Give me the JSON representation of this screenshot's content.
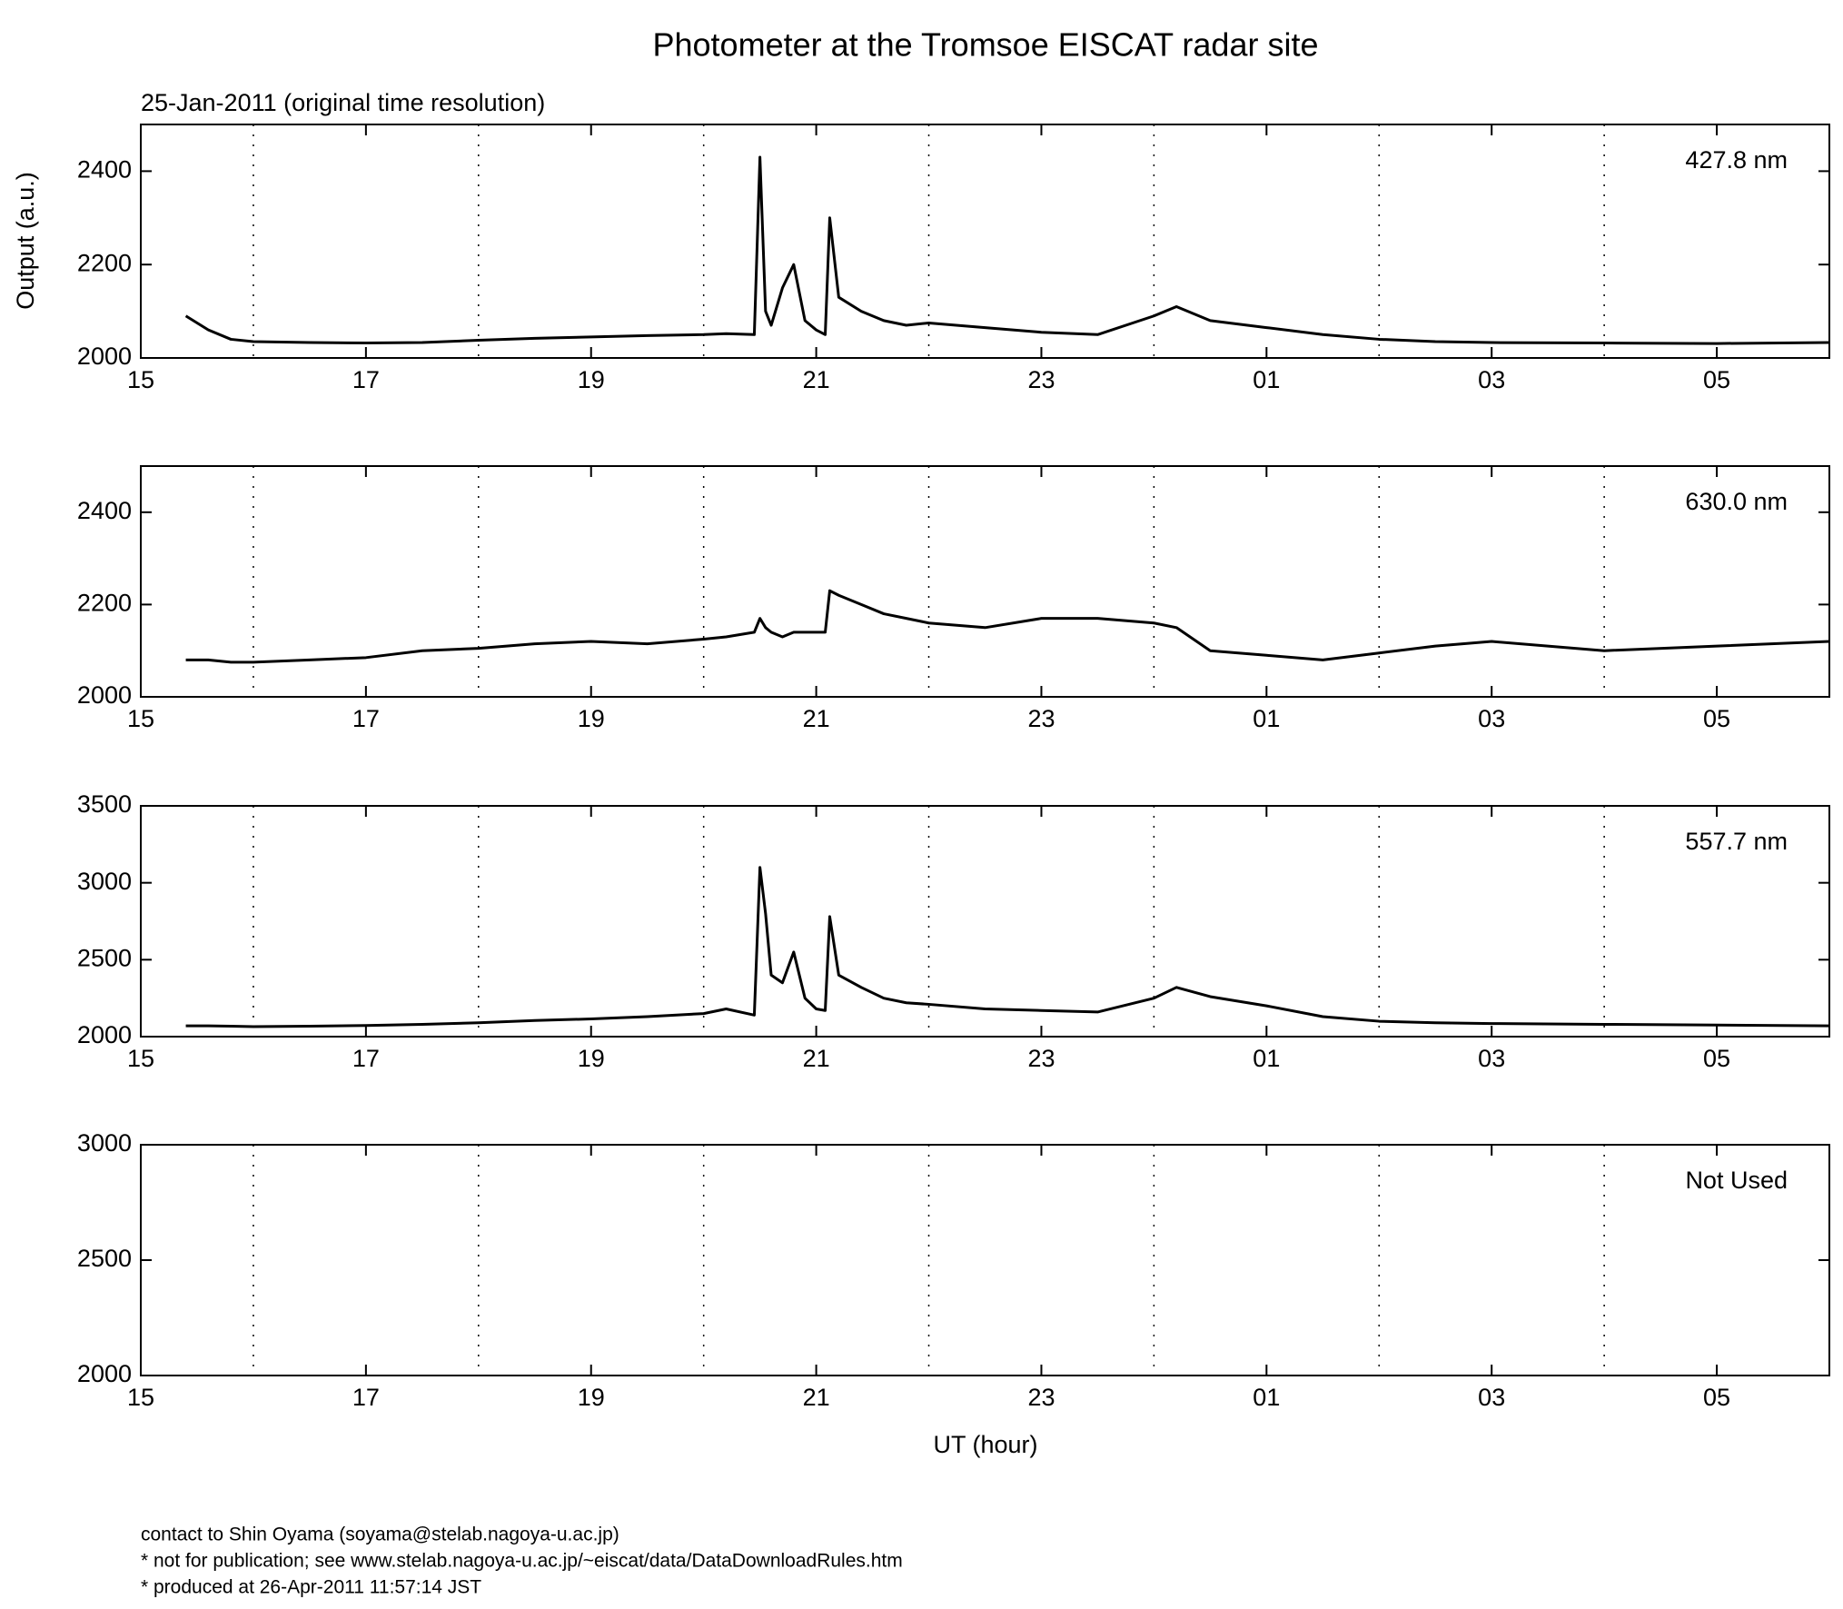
{
  "title": "Photometer at the Tromsoe EISCAT radar site",
  "subtitle": "25-Jan-2011 (original time resolution)",
  "ylabel": "Output (a.u.)",
  "xlabel": "UT (hour)",
  "footer": [
    "contact to Shin Oyama (soyama@stelab.nagoya-u.ac.jp)",
    "* not for publication; see www.stelab.nagoya-u.ac.jp/~eiscat/data/DataDownloadRules.htm",
    "* produced at 26-Apr-2011 11:57:14 JST"
  ],
  "chart_data": [
    {
      "type": "line",
      "annotation": "427.8 nm",
      "xlim": [
        15,
        30
      ],
      "xticks": [
        15,
        17,
        19,
        21,
        23,
        {
          "value": 25,
          "label": "01"
        },
        {
          "value": 27,
          "label": "03"
        },
        {
          "value": 29,
          "label": "05"
        }
      ],
      "xgrid": [
        16,
        18,
        20,
        22,
        24,
        26,
        28
      ],
      "ylim": [
        2000,
        2500
      ],
      "yticks": [
        2000,
        2200,
        2400
      ],
      "x": [
        15.4,
        15.6,
        15.8,
        16,
        16.5,
        17,
        17.5,
        18,
        18.5,
        19,
        19.5,
        20,
        20.2,
        20.45,
        20.5,
        20.55,
        20.6,
        20.7,
        20.8,
        20.9,
        21.0,
        21.08,
        21.12,
        21.2,
        21.4,
        21.6,
        21.8,
        22,
        22.5,
        23,
        23.5,
        24,
        24.2,
        24.5,
        25,
        25.5,
        26,
        26.5,
        27,
        28,
        29,
        30
      ],
      "series": [
        {
          "color": "#000000",
          "values": [
            2090,
            2060,
            2040,
            2035,
            2033,
            2032,
            2033,
            2038,
            2042,
            2045,
            2048,
            2050,
            2052,
            2050,
            2430,
            2100,
            2070,
            2150,
            2200,
            2080,
            2060,
            2050,
            2300,
            2130,
            2100,
            2080,
            2070,
            2075,
            2065,
            2055,
            2050,
            2090,
            2110,
            2080,
            2065,
            2050,
            2040,
            2035,
            2033,
            2032,
            2031,
            2033
          ]
        }
      ]
    },
    {
      "type": "line",
      "annotation": "630.0 nm",
      "xlim": [
        15,
        30
      ],
      "xticks": [
        15,
        17,
        19,
        21,
        23,
        {
          "value": 25,
          "label": "01"
        },
        {
          "value": 27,
          "label": "03"
        },
        {
          "value": 29,
          "label": "05"
        }
      ],
      "xgrid": [
        16,
        18,
        20,
        22,
        24,
        26,
        28
      ],
      "ylim": [
        2000,
        2500
      ],
      "yticks": [
        2000,
        2200,
        2400
      ],
      "x": [
        15.4,
        15.6,
        15.8,
        16,
        16.5,
        17,
        17.5,
        18,
        18.5,
        19,
        19.5,
        20,
        20.2,
        20.45,
        20.5,
        20.55,
        20.6,
        20.7,
        20.8,
        20.9,
        21.0,
        21.08,
        21.12,
        21.2,
        21.4,
        21.6,
        21.8,
        22,
        22.5,
        23,
        23.5,
        24,
        24.2,
        24.5,
        25,
        25.5,
        26,
        26.5,
        27,
        28,
        29,
        30
      ],
      "series": [
        {
          "color": "#000000",
          "values": [
            2080,
            2080,
            2075,
            2075,
            2080,
            2085,
            2100,
            2105,
            2115,
            2120,
            2115,
            2125,
            2130,
            2140,
            2170,
            2150,
            2140,
            2130,
            2140,
            2140,
            2140,
            2140,
            2230,
            2220,
            2200,
            2180,
            2170,
            2160,
            2150,
            2170,
            2170,
            2160,
            2150,
            2100,
            2090,
            2080,
            2095,
            2110,
            2120,
            2100,
            2110,
            2120
          ]
        }
      ]
    },
    {
      "type": "line",
      "annotation": "557.7 nm",
      "xlim": [
        15,
        30
      ],
      "xticks": [
        15,
        17,
        19,
        21,
        23,
        {
          "value": 25,
          "label": "01"
        },
        {
          "value": 27,
          "label": "03"
        },
        {
          "value": 29,
          "label": "05"
        }
      ],
      "xgrid": [
        16,
        18,
        20,
        22,
        24,
        26,
        28
      ],
      "ylim": [
        2000,
        3500
      ],
      "yticks": [
        2000,
        2500,
        3000,
        3500
      ],
      "x": [
        15.4,
        15.6,
        15.8,
        16,
        16.5,
        17,
        17.5,
        18,
        18.5,
        19,
        19.5,
        20,
        20.2,
        20.45,
        20.5,
        20.55,
        20.6,
        20.7,
        20.8,
        20.9,
        21.0,
        21.08,
        21.12,
        21.2,
        21.4,
        21.6,
        21.8,
        22,
        22.5,
        23,
        23.5,
        24,
        24.2,
        24.5,
        25,
        25.5,
        26,
        26.5,
        27,
        28,
        29,
        30
      ],
      "series": [
        {
          "color": "#000000",
          "values": [
            2070,
            2070,
            2068,
            2065,
            2068,
            2072,
            2080,
            2090,
            2105,
            2115,
            2130,
            2150,
            2180,
            2140,
            3100,
            2800,
            2400,
            2350,
            2550,
            2250,
            2180,
            2170,
            2780,
            2400,
            2320,
            2250,
            2220,
            2210,
            2180,
            2170,
            2160,
            2250,
            2320,
            2260,
            2200,
            2130,
            2100,
            2090,
            2085,
            2080,
            2075,
            2070
          ]
        }
      ]
    },
    {
      "type": "line",
      "annotation": "Not Used",
      "xlim": [
        15,
        30
      ],
      "xticks": [
        15,
        17,
        19,
        21,
        23,
        {
          "value": 25,
          "label": "01"
        },
        {
          "value": 27,
          "label": "03"
        },
        {
          "value": 29,
          "label": "05"
        }
      ],
      "xgrid": [
        16,
        18,
        20,
        22,
        24,
        26,
        28
      ],
      "ylim": [
        2000,
        3000
      ],
      "yticks": [
        2000,
        2500,
        3000
      ],
      "series": []
    }
  ]
}
